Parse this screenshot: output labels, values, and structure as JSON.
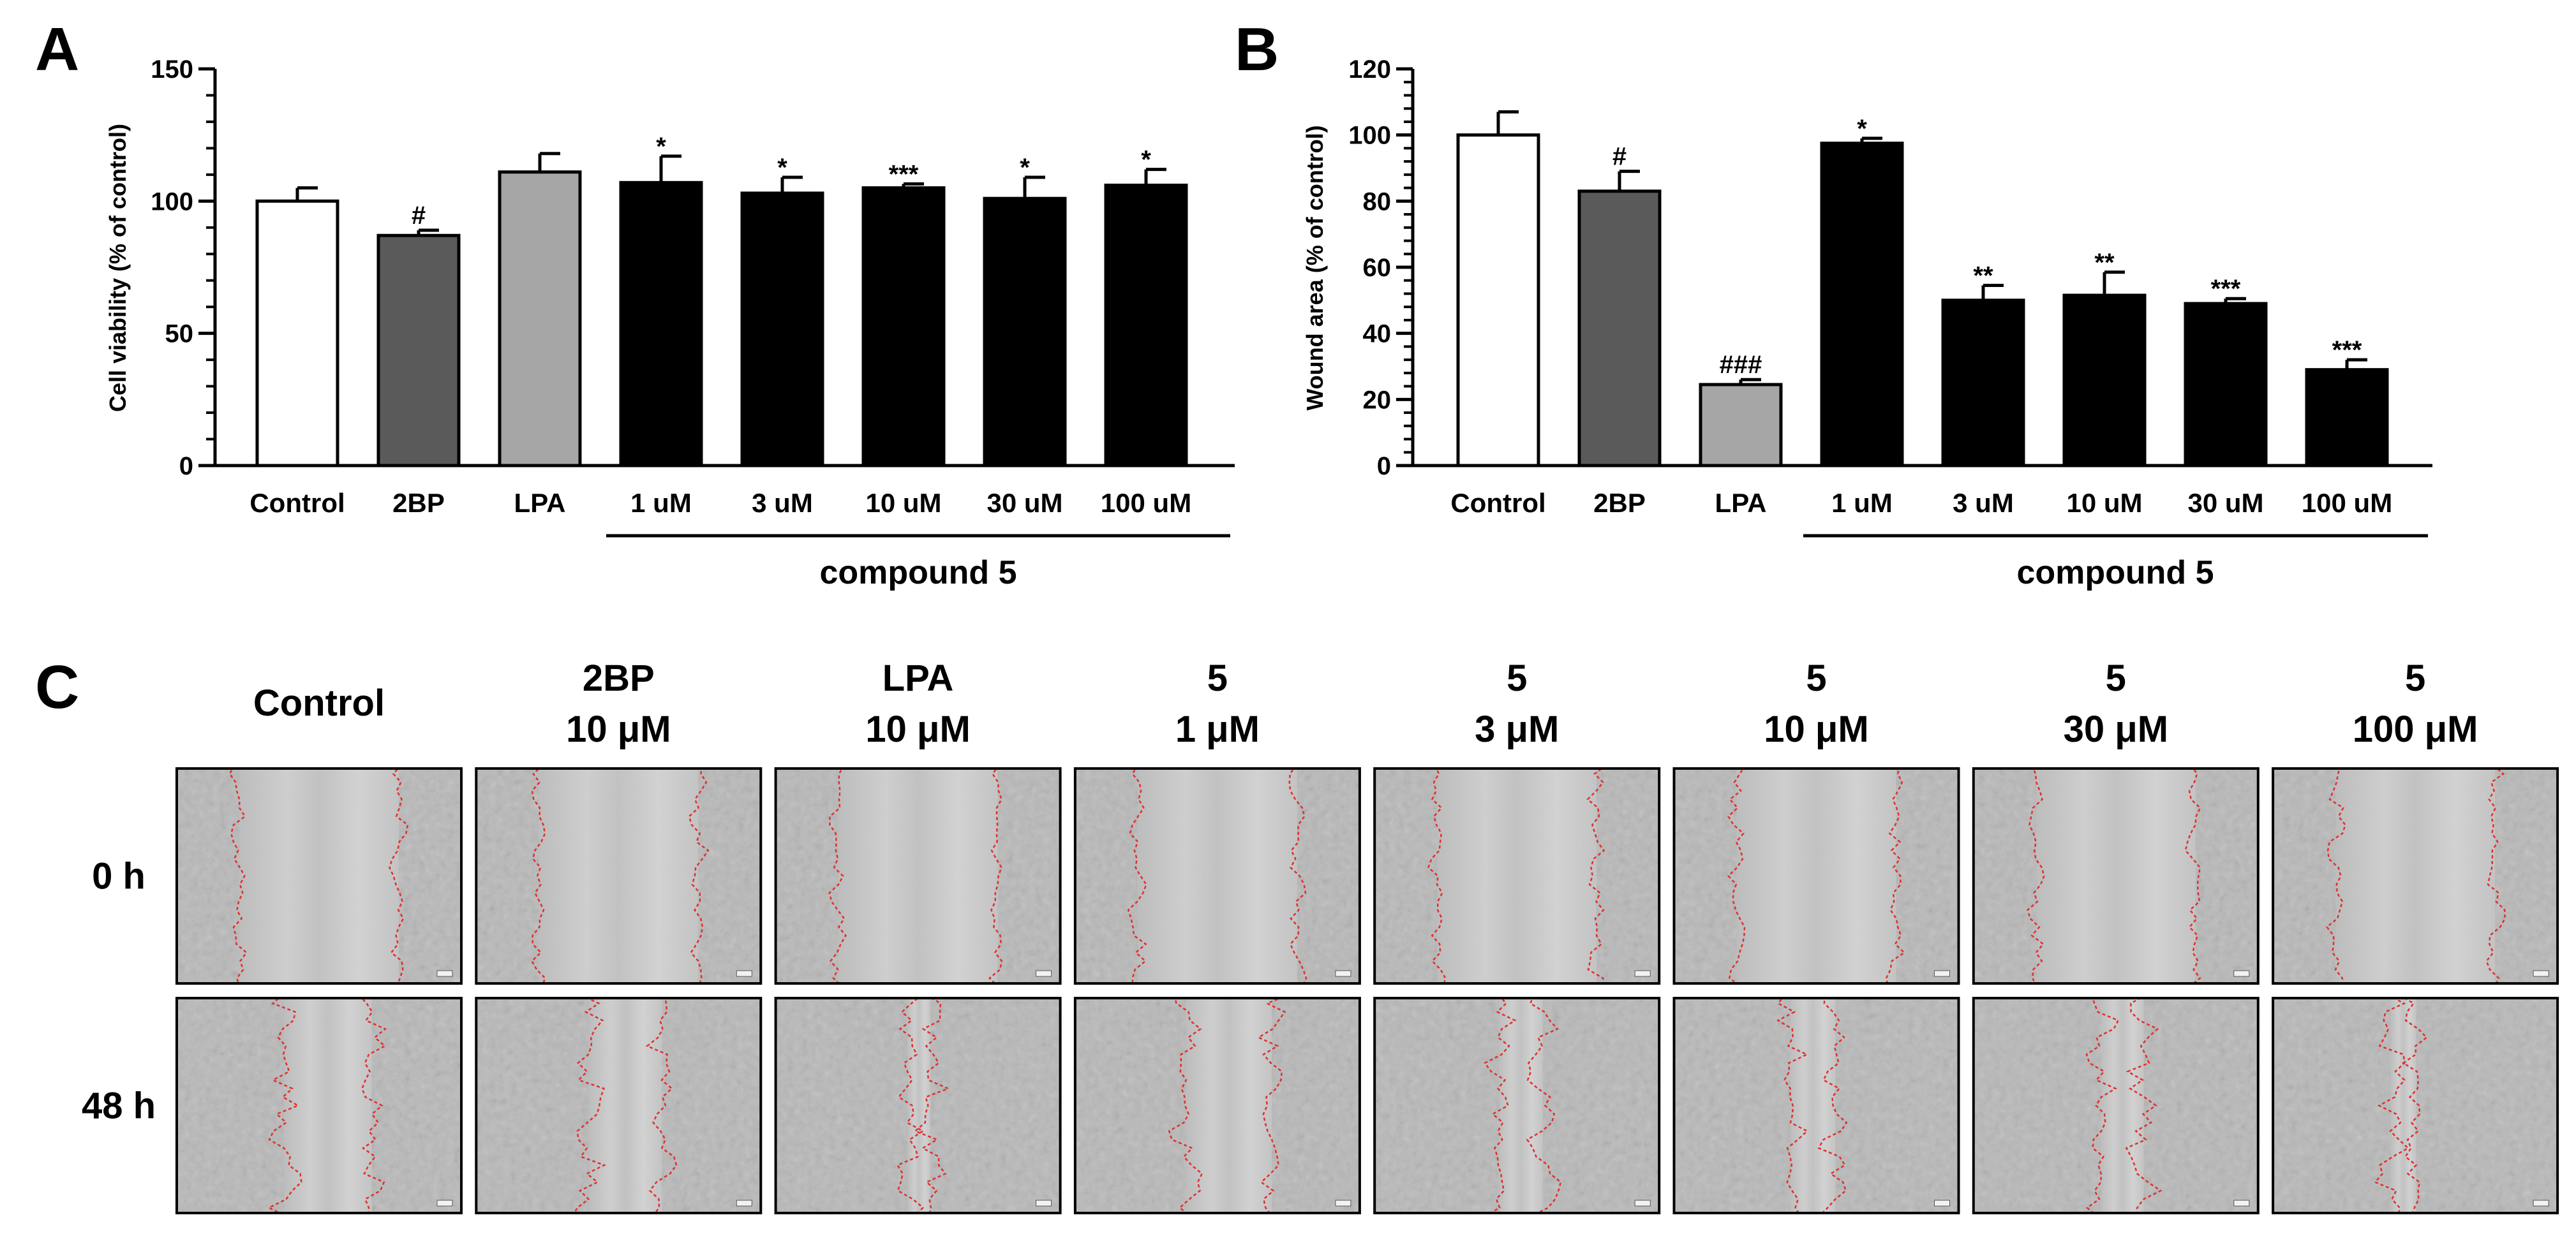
{
  "panels": {
    "a": "A",
    "b": "B",
    "c": "C"
  },
  "chart_data": [
    {
      "type": "bar",
      "ylabel": "Cell viability (% of control)",
      "ylim": [
        0,
        150
      ],
      "yticks": [
        0,
        50,
        100,
        150
      ],
      "categories": [
        "Control",
        "2BP",
        "LPA",
        "1 uM",
        "3 uM",
        "10 uM",
        "30 uM",
        "100 uM"
      ],
      "values": [
        100,
        87,
        111,
        107,
        103,
        105,
        101,
        106
      ],
      "errors": [
        5,
        2,
        7,
        10,
        6,
        1.5,
        8,
        6
      ],
      "colors": [
        "#ffffff",
        "#5a5a5a",
        "#a6a6a6",
        "#000000",
        "#000000",
        "#000000",
        "#000000",
        "#000000"
      ],
      "annotations": [
        "",
        "#",
        "",
        "*",
        "*",
        "***",
        "*",
        "*"
      ],
      "group_label": "compound 5",
      "grid": false
    },
    {
      "type": "bar",
      "ylabel": "Wound area (% of control)",
      "ylim": [
        0,
        120
      ],
      "yticks": [
        0,
        20,
        40,
        60,
        80,
        100,
        120
      ],
      "categories": [
        "Control",
        "2BP",
        "LPA",
        "1 uM",
        "3 uM",
        "10 uM",
        "30 uM",
        "100 uM"
      ],
      "values": [
        100,
        83,
        24.5,
        97.5,
        50,
        51.5,
        49,
        29
      ],
      "errors": [
        7,
        6,
        1.5,
        1.5,
        4.5,
        7,
        1.5,
        3
      ],
      "colors": [
        "#ffffff",
        "#5a5a5a",
        "#a6a6a6",
        "#000000",
        "#000000",
        "#000000",
        "#000000",
        "#000000"
      ],
      "annotations": [
        "",
        "#",
        "###",
        "*",
        "**",
        "**",
        "***",
        "***"
      ],
      "group_label": "compound 5",
      "grid": false
    }
  ],
  "micrographs": {
    "columns": [
      {
        "line1": "",
        "line2": "Control"
      },
      {
        "line1": "2BP",
        "line2": "10 μM"
      },
      {
        "line1": "LPA",
        "line2": "10 μM"
      },
      {
        "line1": "5",
        "line2": "1 μM"
      },
      {
        "line1": "5",
        "line2": "3 μM"
      },
      {
        "line1": "5",
        "line2": "10 μM"
      },
      {
        "line1": "5",
        "line2": "30 μM"
      },
      {
        "line1": "5",
        "line2": "100 μM"
      }
    ],
    "rows": [
      "0 h",
      "48 h"
    ],
    "wound_area_48h": [
      100,
      83,
      24.5,
      97.5,
      50,
      51.5,
      49,
      29
    ],
    "outline_color": "#e03030"
  }
}
